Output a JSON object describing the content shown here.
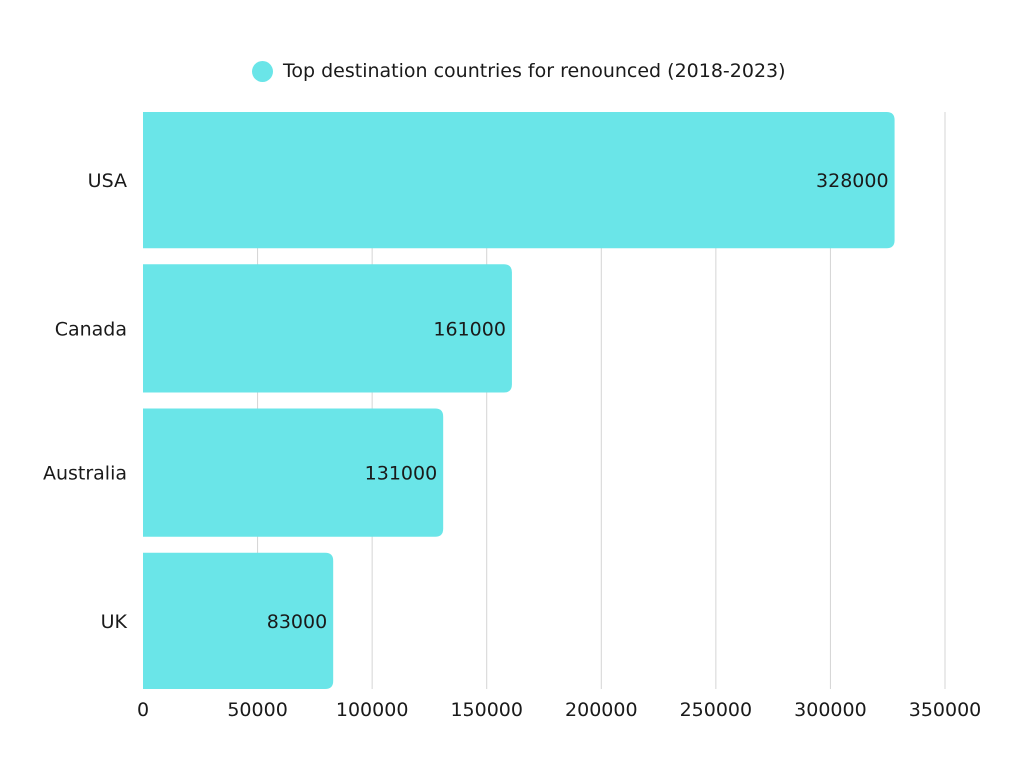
{
  "chart_data": {
    "type": "bar",
    "orientation": "horizontal",
    "categories": [
      "USA",
      "Canada",
      "Australia",
      "UK"
    ],
    "series": [
      {
        "name": "Top destination countries for renounced (2018-2023)",
        "values": [
          328000,
          161000,
          131000,
          83000
        ],
        "color": "#6ae5e8"
      }
    ],
    "xlim": [
      0,
      350000
    ],
    "x_ticks": [
      0,
      50000,
      100000,
      150000,
      200000,
      250000,
      300000,
      350000
    ],
    "x_tick_labels": [
      "0",
      "50000",
      "100000",
      "150000",
      "200000",
      "250000",
      "300000",
      "350000"
    ],
    "grid": "vertical",
    "legend_position": "top",
    "data_labels": [
      "328000",
      "161000",
      "131000",
      "83000"
    ]
  }
}
